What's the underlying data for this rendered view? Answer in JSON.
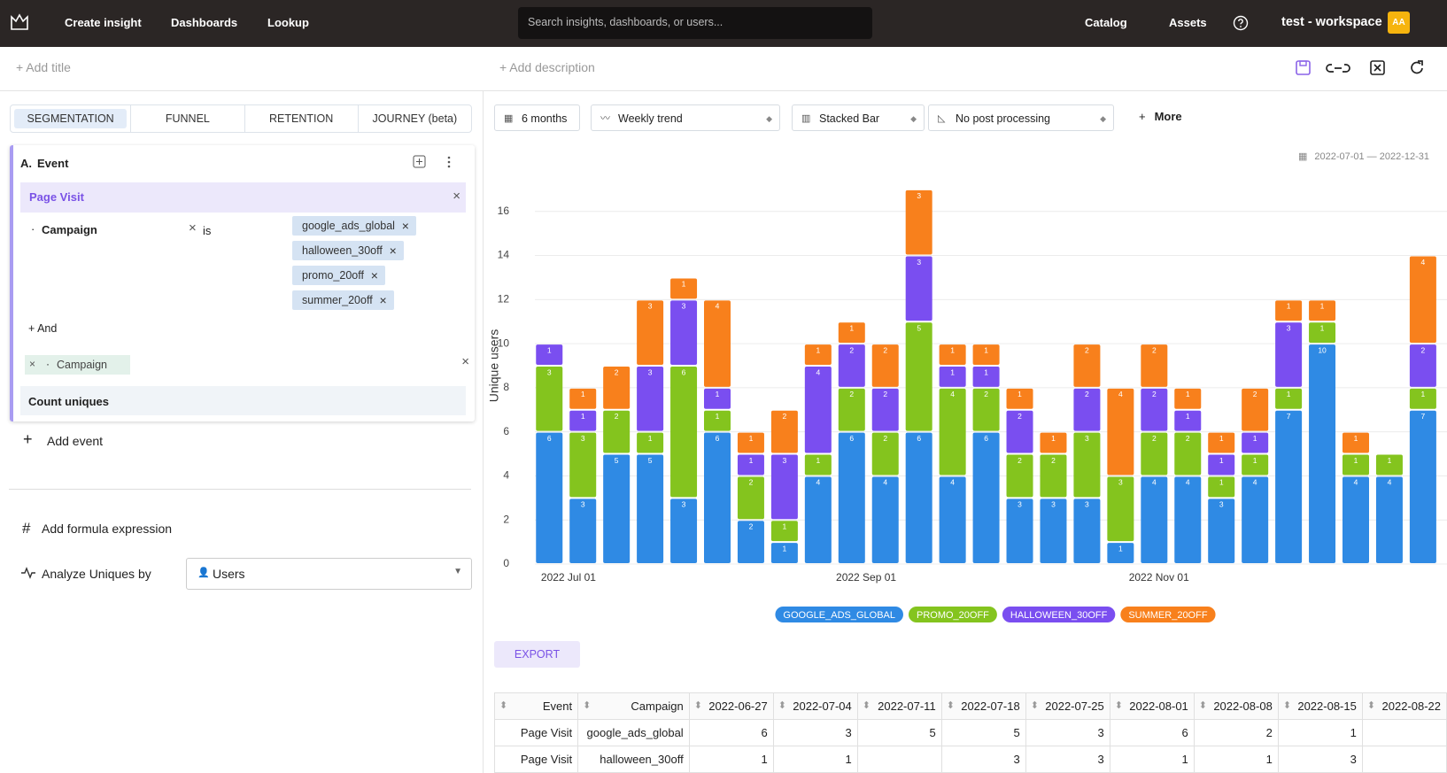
{
  "nav": {
    "links": [
      "Create insight",
      "Dashboards",
      "Lookup"
    ],
    "search_placeholder": "Search insights, dashboards, or users...",
    "right_links": [
      "Catalog",
      "Assets"
    ],
    "workspace": "test - workspace",
    "avatar": "AA"
  },
  "header": {
    "add_title": "+ Add title",
    "add_description": "+ Add description"
  },
  "tabs": [
    "SEGMENTATION",
    "FUNNEL",
    "RETENTION",
    "JOURNEY (beta)"
  ],
  "event": {
    "letter": "A.",
    "heading": "Event",
    "name": "Page Visit",
    "filter_property": "Campaign",
    "operator": "is",
    "filter_values": [
      "google_ads_global",
      "halloween_30off",
      "promo_20off",
      "summer_20off"
    ],
    "add_and": "+ And",
    "breakdown": "Campaign",
    "measure": "Count uniques"
  },
  "left_actions": {
    "add_event": "Add event",
    "add_formula": "Add formula expression",
    "analyze_label": "Analyze Uniques by",
    "analyze_value": "Users"
  },
  "controls": {
    "range": "6 months",
    "trend": "Weekly trend",
    "chart_kind": "Stacked Bar",
    "post": "No post processing",
    "more": "More",
    "date_range": "2022-07-01 — 2022-12-31"
  },
  "export": "EXPORT",
  "table": {
    "columns": [
      "Event",
      "Campaign"
    ],
    "rows": [
      {
        "event": "Page Visit",
        "campaign": "google_ads_global",
        "values": [
          6,
          3,
          5,
          5,
          3,
          6,
          2,
          1
        ]
      },
      {
        "event": "Page Visit",
        "campaign": "halloween_30off",
        "values": [
          1,
          1,
          null,
          3,
          3,
          1,
          1,
          3
        ]
      }
    ]
  },
  "chart_data": {
    "type": "bar",
    "stacked": true,
    "ylabel": "Unique users",
    "grid": true,
    "legend": "bottom",
    "x": [
      "2022-06-27",
      "2022-07-04",
      "2022-07-11",
      "2022-07-18",
      "2022-07-25",
      "2022-08-01",
      "2022-08-08",
      "2022-08-15",
      "2022-08-22",
      "2022-08-29",
      "2022-09-05",
      "2022-09-12",
      "2022-09-19",
      "2022-09-26",
      "2022-10-03",
      "2022-10-10",
      "2022-10-17",
      "2022-10-24",
      "2022-10-31",
      "2022-11-07",
      "2022-11-14",
      "2022-11-21",
      "2022-11-28",
      "2022-12-05",
      "2022-12-12",
      "2022-12-19",
      "2022-12-26"
    ],
    "xlim": [
      "2022-06-24",
      "2022-12-31"
    ],
    "xticks": [
      {
        "value": "2022-07-01",
        "label": "2022 Jul 01"
      },
      {
        "value": "2022-09-01",
        "label": "2022 Sep 01"
      },
      {
        "value": "2022-11-01",
        "label": "2022 Nov 01"
      }
    ],
    "ylim": [
      0,
      18
    ],
    "yticks": [
      0,
      2,
      4,
      6,
      8,
      10,
      12,
      14,
      16
    ],
    "series": [
      {
        "name": "google_ads_global",
        "color": "#2f8ae4",
        "values": [
          6,
          3,
          5,
          5,
          3,
          6,
          2,
          1,
          4,
          6,
          4,
          6,
          4,
          6,
          3,
          3,
          3,
          1,
          4,
          4,
          3,
          4,
          7,
          10,
          4,
          4,
          7
        ]
      },
      {
        "name": "promo_20off",
        "color": "#84c41e",
        "values": [
          3,
          3,
          2,
          1,
          6,
          1,
          2,
          1,
          1,
          2,
          2,
          5,
          4,
          2,
          2,
          2,
          3,
          3,
          2,
          2,
          1,
          1,
          1,
          1,
          1,
          1,
          1
        ]
      },
      {
        "name": "halloween_30off",
        "color": "#7a4ef0",
        "values": [
          1,
          1,
          null,
          3,
          3,
          1,
          1,
          3,
          4,
          2,
          2,
          3,
          1,
          1,
          2,
          null,
          2,
          null,
          2,
          1,
          1,
          1,
          3,
          null,
          null,
          null,
          2
        ]
      },
      {
        "name": "summer_20off",
        "color": "#f8801c",
        "values": [
          null,
          1,
          2,
          3,
          1,
          4,
          1,
          2,
          1,
          1,
          2,
          3,
          1,
          1,
          1,
          1,
          2,
          4,
          2,
          1,
          1,
          2,
          1,
          1,
          1,
          null,
          4
        ]
      }
    ]
  }
}
